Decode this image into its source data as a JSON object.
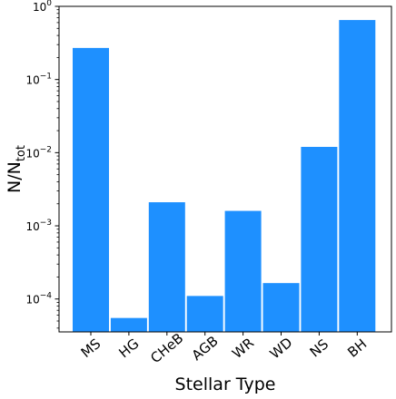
{
  "chart_data": {
    "type": "bar",
    "yscale": "log",
    "xlabel": "Stellar Type",
    "ylabel": {
      "main": "N/N",
      "sub": "tot"
    },
    "categories": [
      "MS",
      "HG",
      "CHeB",
      "AGB",
      "WR",
      "WD",
      "NS",
      "BH"
    ],
    "values": [
      0.27,
      5.5e-05,
      0.0021,
      0.00011,
      0.0016,
      0.000165,
      0.012,
      0.65
    ],
    "yticks": [
      {
        "value": 0.0001,
        "base": "10",
        "exp": "−4"
      },
      {
        "value": 0.001,
        "base": "10",
        "exp": "−3"
      },
      {
        "value": 0.01,
        "base": "10",
        "exp": "−2"
      },
      {
        "value": 0.1,
        "base": "10",
        "exp": "−1"
      },
      {
        "value": 1,
        "base": "10",
        "exp": "0"
      }
    ],
    "ylim": [
      3.55e-05,
      1.0
    ],
    "bar_color": "#1e90ff",
    "grid": false
  }
}
